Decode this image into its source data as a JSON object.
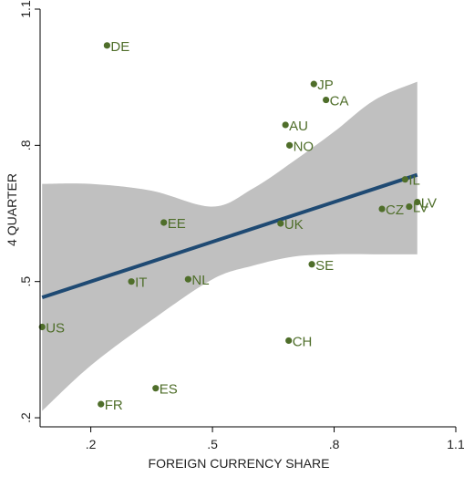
{
  "chart_data": {
    "type": "scatter",
    "xlabel": "FOREIGN CURRENCY SHARE",
    "ylabel": "4 QUARTER",
    "xlim": [
      0.075,
      1.1
    ],
    "ylim": [
      0.18,
      1.1
    ],
    "xticks": [
      ".2",
      ".5",
      ".8",
      "1.1"
    ],
    "yticks": [
      ".2",
      ".5",
      ".8",
      "1.1"
    ],
    "xtick_values": [
      0.2,
      0.5,
      0.8,
      1.1
    ],
    "ytick_values": [
      0.2,
      0.5,
      0.8,
      1.1
    ],
    "grid": false,
    "colors": {
      "point": "#4f6e2a",
      "fit_line": "#1f4a73",
      "ci_band": "#c0c0c0"
    },
    "points": [
      {
        "label": "DE",
        "x": 0.24,
        "y": 1.02
      },
      {
        "label": "JP",
        "x": 0.75,
        "y": 0.935
      },
      {
        "label": "CA",
        "x": 0.78,
        "y": 0.9
      },
      {
        "label": "AU",
        "x": 0.68,
        "y": 0.845
      },
      {
        "label": "NO",
        "x": 0.69,
        "y": 0.8
      },
      {
        "label": "IL",
        "x": 0.975,
        "y": 0.725
      },
      {
        "label": "CZ",
        "x": 0.918,
        "y": 0.66
      },
      {
        "label": "LV",
        "x": 0.985,
        "y": 0.665
      },
      {
        "label": "LV",
        "x": 1.005,
        "y": 0.675
      },
      {
        "label": "EE",
        "x": 0.38,
        "y": 0.63
      },
      {
        "label": "UK",
        "x": 0.668,
        "y": 0.628
      },
      {
        "label": "SE",
        "x": 0.745,
        "y": 0.538
      },
      {
        "label": "NL",
        "x": 0.44,
        "y": 0.505
      },
      {
        "label": "IT",
        "x": 0.3,
        "y": 0.5
      },
      {
        "label": "US",
        "x": 0.08,
        "y": 0.4
      },
      {
        "label": "CH",
        "x": 0.688,
        "y": 0.37
      },
      {
        "label": "ES",
        "x": 0.36,
        "y": 0.265
      },
      {
        "label": "FR",
        "x": 0.225,
        "y": 0.23
      }
    ],
    "fit_line": {
      "x": [
        0.08,
        1.005
      ],
      "y": [
        0.465,
        0.735
      ]
    },
    "ci_band": {
      "x": [
        0.08,
        0.2,
        0.35,
        0.5,
        0.6,
        0.7,
        0.8,
        0.9,
        1.005
      ],
      "upper": [
        0.715,
        0.715,
        0.7,
        0.665,
        0.705,
        0.765,
        0.83,
        0.9,
        0.94
      ],
      "lower": [
        0.215,
        0.315,
        0.415,
        0.505,
        0.535,
        0.555,
        0.56,
        0.56,
        0.56
      ]
    }
  }
}
